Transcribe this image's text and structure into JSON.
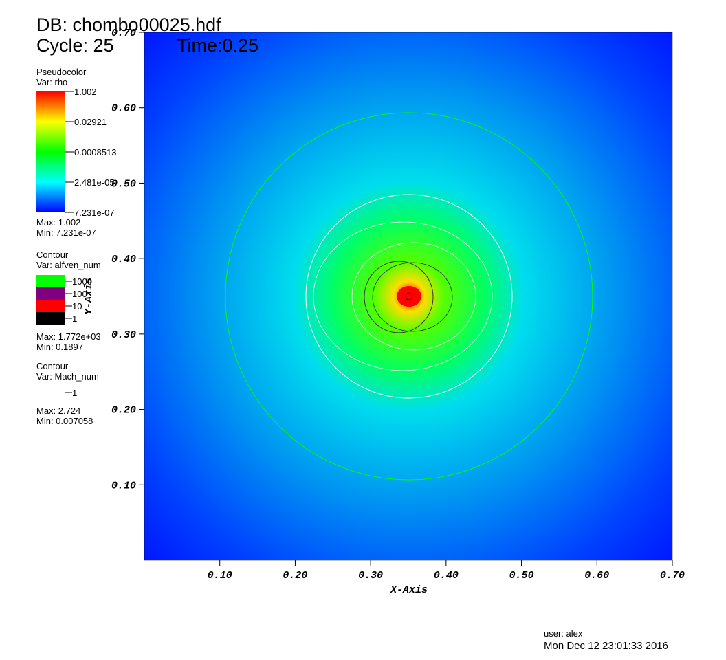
{
  "header": {
    "db": "DB: chombo00025.hdf",
    "cycle": "Cycle: 25",
    "time": "Time:0.25"
  },
  "chart_data": {
    "type": "pseudocolor",
    "x_label": "X-Axis",
    "y_label": "Y-Axis",
    "xlim": [
      0,
      0.7
    ],
    "ylim": [
      0,
      0.7
    ],
    "xticks": [
      {
        "value": 0.1,
        "label": "0.10"
      },
      {
        "value": 0.2,
        "label": "0.20"
      },
      {
        "value": 0.3,
        "label": "0.30"
      },
      {
        "value": 0.4,
        "label": "0.40"
      },
      {
        "value": 0.5,
        "label": "0.50"
      },
      {
        "value": 0.6,
        "label": "0.60"
      },
      {
        "value": 0.7,
        "label": "0.70"
      }
    ],
    "yticks": [
      {
        "value": 0.1,
        "label": "0.10"
      },
      {
        "value": 0.2,
        "label": "0.20"
      },
      {
        "value": 0.3,
        "label": "0.30"
      },
      {
        "value": 0.4,
        "label": "0.40"
      },
      {
        "value": 0.5,
        "label": "0.50"
      },
      {
        "value": 0.6,
        "label": "0.60"
      },
      {
        "value": 0.7,
        "label": "0.70"
      }
    ],
    "colorbar": {
      "title": "Pseudocolor",
      "var": "Var: rho",
      "log_scale": true,
      "colors": [
        "#0000ff",
        "#00ffff",
        "#00ff00",
        "#ffff00",
        "#ff0000"
      ],
      "lim": [
        {
          "value": 7.231e-07,
          "label": "7.231e-07"
        },
        1.002
      ],
      "ticks": [
        1.002,
        0.02921,
        0.0008513,
        {
          "value": 2.481e-05,
          "label": "2.481e-05"
        },
        {
          "value": 7.231e-07,
          "label": "7.231e-07"
        }
      ],
      "max_label": "Max:  1.002",
      "min_label": "Min:  7.231e-07"
    },
    "contours": [
      {
        "title": "Contour",
        "var": "Var: alfven_num",
        "levels": [
          {
            "value": 1000,
            "color": "#00ff00"
          },
          {
            "value": 100,
            "color": "#800080"
          },
          {
            "value": 10,
            "color": "#ff0000"
          },
          {
            "value": 1,
            "color": "#000000"
          }
        ],
        "max_label": "Max:  1.772e+03",
        "min_label": "Min:  0.1897"
      },
      {
        "title": "Contour",
        "var": "Var: Mach_num",
        "levels": [
          {
            "value": 1,
            "color": "#ffffff"
          }
        ],
        "max_label": "Max:  2.724",
        "min_label": "Min:  0.007058"
      }
    ]
  },
  "footer": {
    "user": "user: alex",
    "date": "Mon Dec 12 23:01:33 2016"
  }
}
